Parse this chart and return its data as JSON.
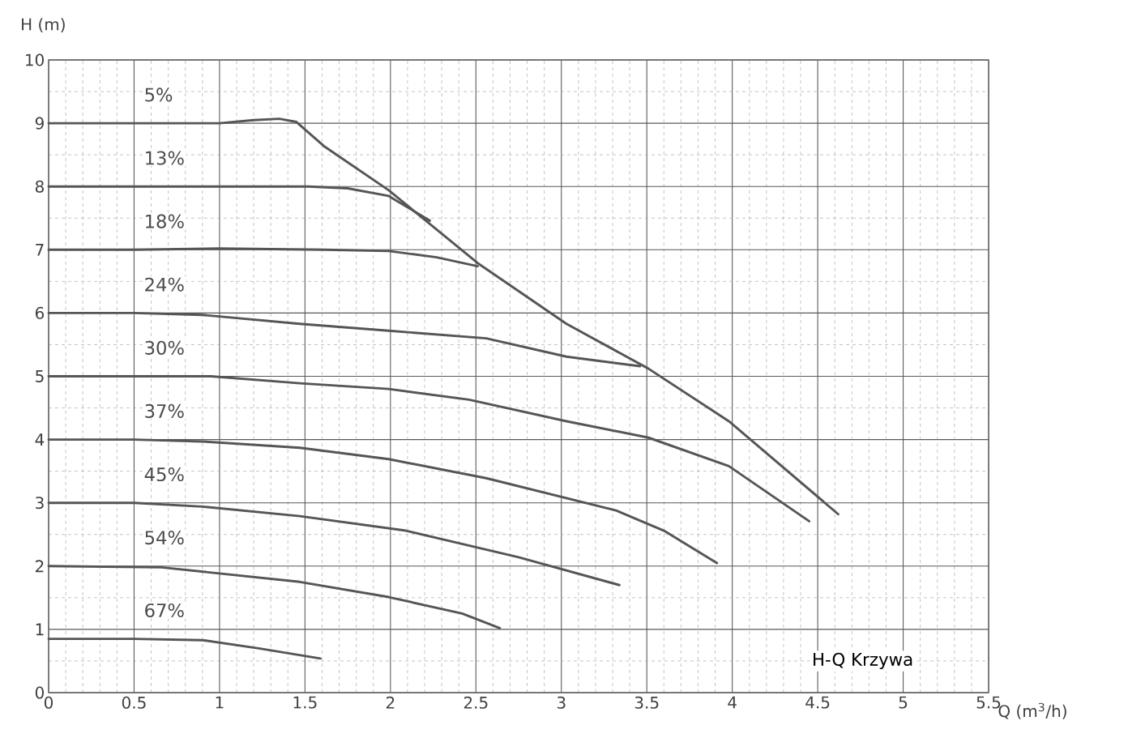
{
  "chart_data": {
    "type": "line",
    "xlabel": "Q (m$^{3}$/h)",
    "ylabel": "H (m)",
    "xlim": [
      0,
      5.5
    ],
    "ylim": [
      0,
      10
    ],
    "xticks": [
      0,
      0.5,
      1,
      1.5,
      2,
      2.5,
      3,
      3.5,
      4,
      4.5,
      5,
      5.5
    ],
    "yticks": [
      0,
      1,
      2,
      3,
      4,
      5,
      6,
      7,
      8,
      9,
      10
    ],
    "grid": true,
    "marker": "none",
    "line_style": "solid",
    "annotations": [
      "H-Q Krzywa"
    ],
    "series": [
      {
        "name": "5%",
        "color": "#555555",
        "x": [
          0,
          0.5,
          1,
          1.2,
          1.35,
          1.45,
          1.61,
          1.99,
          2.51,
          3.03,
          3.51,
          3.98,
          4.62
        ],
        "values": [
          9,
          9,
          9,
          9.05,
          9.07,
          9.02,
          8.64,
          7.94,
          6.79,
          5.83,
          5.12,
          4.29,
          2.82
        ]
      },
      {
        "name": "13%",
        "color": "#555555",
        "x": [
          0,
          0.5,
          1,
          1.52,
          1.75,
          1.99,
          2.23
        ],
        "values": [
          8,
          8,
          8,
          8,
          7.97,
          7.85,
          7.46
        ]
      },
      {
        "name": "18%",
        "color": "#555555",
        "x": [
          0,
          0.5,
          1,
          1.61,
          1.99,
          2.27,
          2.51
        ],
        "values": [
          7,
          7,
          7.02,
          7,
          6.98,
          6.88,
          6.74
        ]
      },
      {
        "name": "24%",
        "color": "#555555",
        "x": [
          0,
          0.5,
          0.9,
          1.47,
          1.99,
          2.56,
          3.03,
          3.46
        ],
        "values": [
          6,
          6,
          5.97,
          5.83,
          5.72,
          5.6,
          5.31,
          5.16
        ]
      },
      {
        "name": "30%",
        "color": "#555555",
        "x": [
          0,
          0.5,
          0.95,
          1.47,
          1.99,
          2.46,
          3.03,
          3.51,
          3.98,
          4.45
        ],
        "values": [
          5,
          5,
          5,
          4.89,
          4.8,
          4.63,
          4.29,
          4.03,
          3.58,
          2.71
        ]
      },
      {
        "name": "37%",
        "color": "#555555",
        "x": [
          0,
          0.5,
          0.9,
          1.47,
          1.99,
          2.56,
          3.32,
          3.6,
          3.91
        ],
        "values": [
          4,
          4,
          3.97,
          3.87,
          3.69,
          3.39,
          2.88,
          2.56,
          2.05
        ]
      },
      {
        "name": "45%",
        "color": "#555555",
        "x": [
          0,
          0.5,
          0.9,
          1.47,
          2.09,
          2.75,
          3.34
        ],
        "values": [
          3,
          3,
          2.94,
          2.79,
          2.56,
          2.14,
          1.7
        ]
      },
      {
        "name": "54%",
        "color": "#555555",
        "x": [
          0,
          0.66,
          1.47,
          1.99,
          2.42,
          2.64
        ],
        "values": [
          2,
          1.98,
          1.75,
          1.51,
          1.25,
          1.02
        ]
      },
      {
        "name": "67%",
        "color": "#555555",
        "x": [
          0,
          0.5,
          0.9,
          1.23,
          1.59
        ],
        "values": [
          0.85,
          0.85,
          0.83,
          0.7,
          0.54
        ]
      }
    ]
  }
}
